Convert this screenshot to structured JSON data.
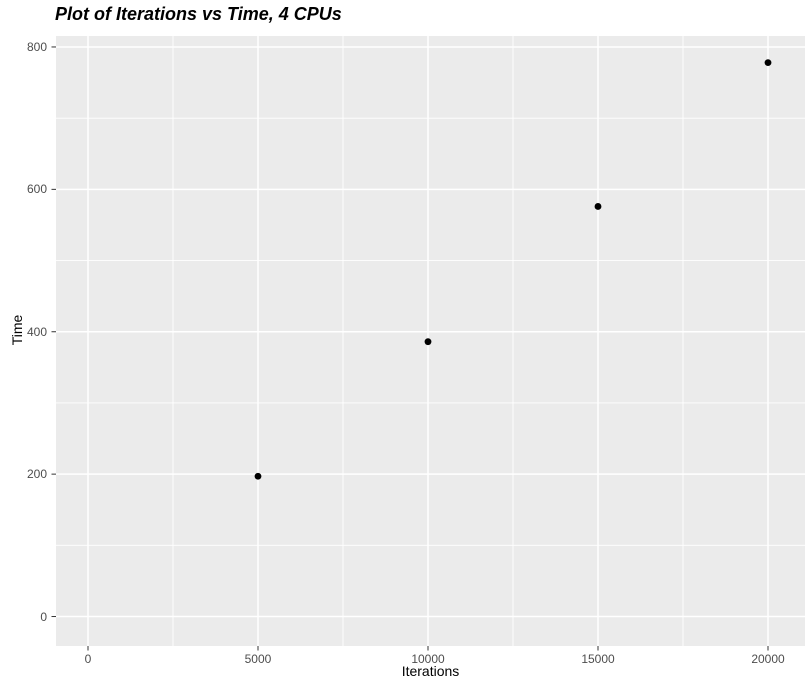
{
  "chart_data": {
    "type": "scatter",
    "title": "Plot of Iterations vs Time, 4 CPUs",
    "xlabel": "Iterations",
    "ylabel": "Time",
    "points": [
      {
        "x": 5000,
        "y": 197
      },
      {
        "x": 10000,
        "y": 386
      },
      {
        "x": 15000,
        "y": 576
      },
      {
        "x": 20000,
        "y": 778
      }
    ],
    "x_ticks": [
      0,
      5000,
      10000,
      15000,
      20000
    ],
    "y_ticks": [
      0,
      200,
      400,
      600,
      800
    ],
    "x_minor_ticks": [
      2500,
      7500,
      12500,
      17500
    ],
    "y_minor_ticks": [
      100,
      300,
      500,
      700
    ],
    "xlim": [
      -941,
      21088
    ],
    "ylim": [
      -41.4,
      815.4
    ],
    "grid": true,
    "legend_position": "none",
    "colors": {
      "page_bg": "#FFFFFF",
      "panel_bg": "#EBEBEB",
      "grid_major": "#FFFFFF",
      "grid_minor": "#FFFFFF",
      "point": "#000000",
      "tick_mark": "#333333",
      "tick_label": "#4D4D4D",
      "axis_title": "#000000",
      "title": "#000000"
    }
  }
}
